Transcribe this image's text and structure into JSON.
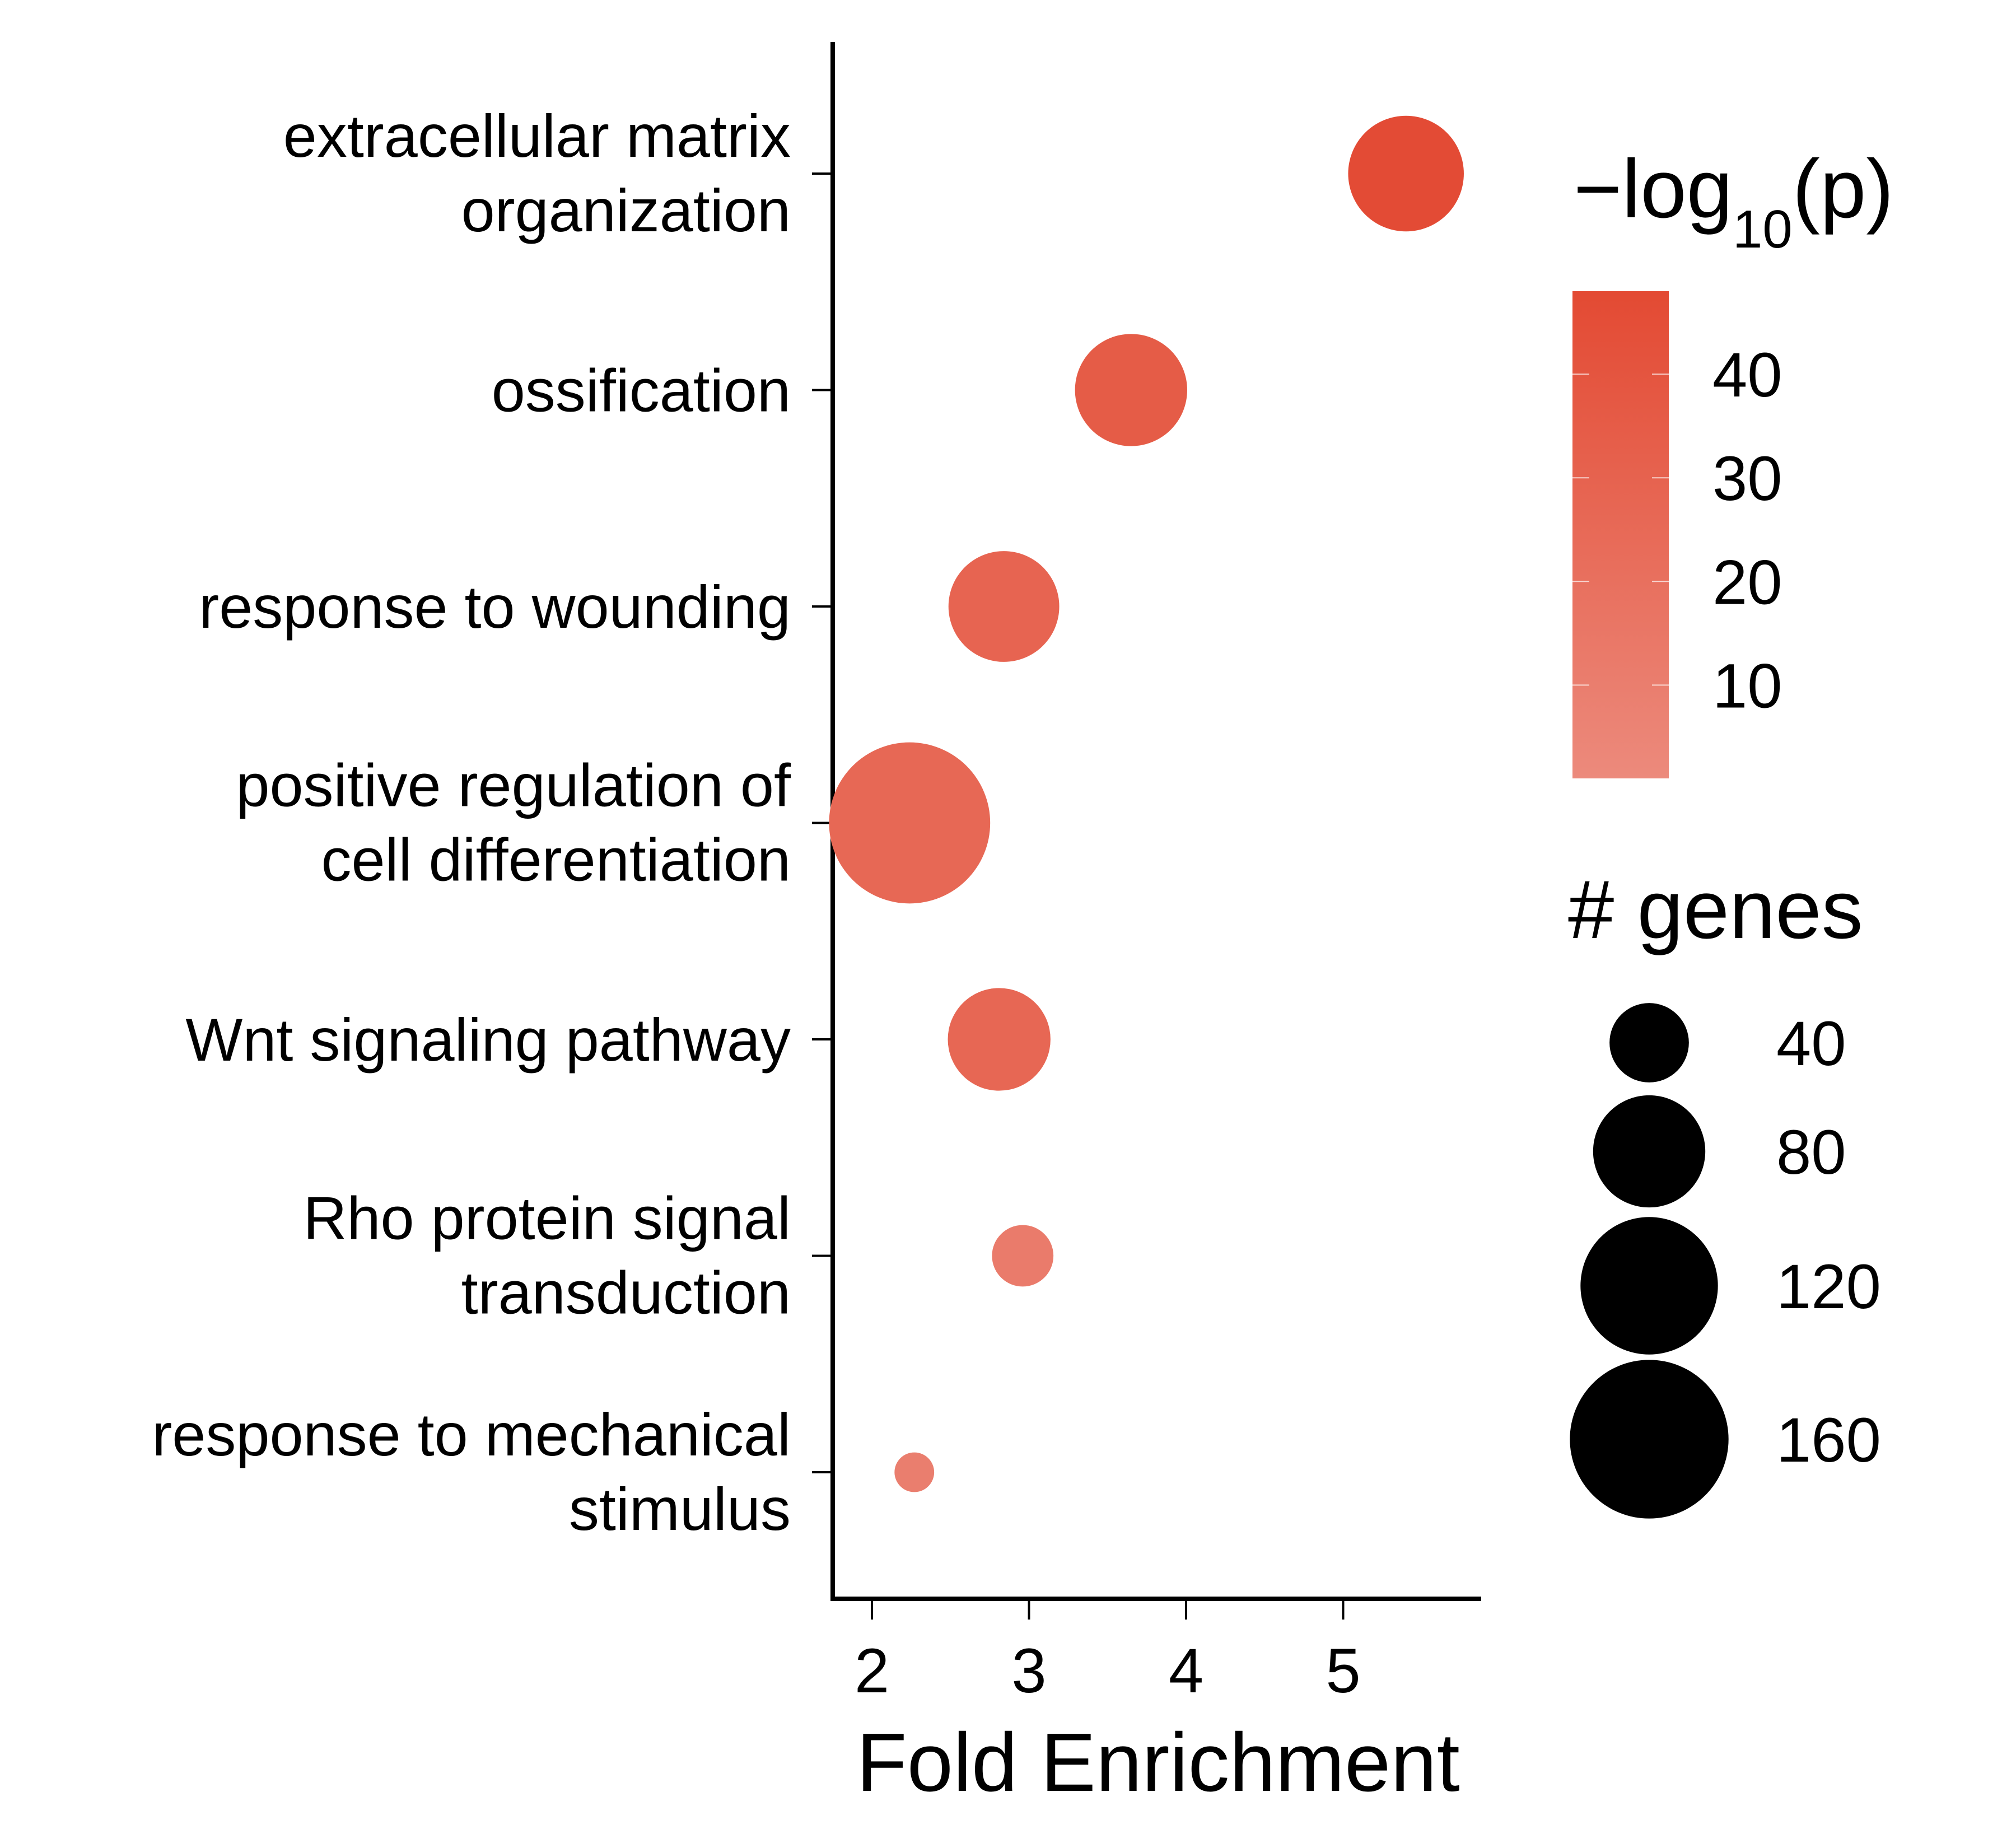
{
  "chart_data": {
    "type": "scatter",
    "xlabel": "Fold Enrichment",
    "ylabel": "",
    "xlim": [
      1.75,
      5.88
    ],
    "xticks": [
      2,
      3,
      4,
      5
    ],
    "grid": false,
    "categories": [
      [
        "extracellular matrix",
        "organization"
      ],
      [
        "ossification"
      ],
      [
        "response to wounding"
      ],
      [
        "positive regulation of",
        "cell differentiation"
      ],
      [
        "Wnt signaling pathway"
      ],
      [
        "Rho protein signal",
        "transduction"
      ],
      [
        "response to mechanical",
        "stimulus"
      ]
    ],
    "points": [
      {
        "x": 5.4,
        "genes": 85,
        "neg_log10_p": 47
      },
      {
        "x": 3.65,
        "genes": 80,
        "neg_log10_p": 35
      },
      {
        "x": 2.84,
        "genes": 78,
        "neg_log10_p": 29
      },
      {
        "x": 2.24,
        "genes": 165,
        "neg_log10_p": 26
      },
      {
        "x": 2.81,
        "genes": 67,
        "neg_log10_p": 27
      },
      {
        "x": 2.96,
        "genes": 24,
        "neg_log10_p": 12
      },
      {
        "x": 2.27,
        "genes": 10,
        "neg_log10_p": 10
      }
    ],
    "color_legend": {
      "title_prefix": "−log",
      "title_sub": "10",
      "title_suffix": "(p)",
      "ticks": [
        40,
        30,
        20,
        10
      ],
      "range": [
        1,
        48
      ],
      "color_low": "#ec8a7c",
      "color_high": "#e34a33"
    },
    "size_legend": {
      "title": "# genes",
      "values": [
        40,
        80,
        120,
        160
      ],
      "marker_color": "#000000"
    },
    "legend_position": "right"
  }
}
